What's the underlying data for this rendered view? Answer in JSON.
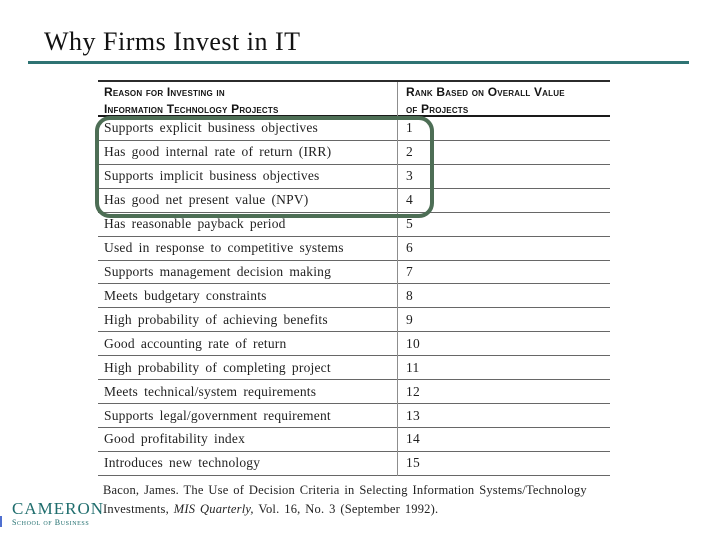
{
  "slide": {
    "title": "Why Firms Invest in IT"
  },
  "table": {
    "header": {
      "col1_line1": "Reason for Investing in",
      "col1_line2": "Information Technology Projects",
      "col2_line1": "Rank Based on Overall Value",
      "col2_line2": "of Projects"
    },
    "rows": [
      {
        "reason": "Supports explicit business objectives",
        "rank": "1",
        "highlighted": true
      },
      {
        "reason": "Has good internal rate of return (IRR)",
        "rank": "2",
        "highlighted": true
      },
      {
        "reason": "Supports implicit business objectives",
        "rank": "3",
        "highlighted": true
      },
      {
        "reason": "Has good net present value (NPV)",
        "rank": "4",
        "highlighted": true
      },
      {
        "reason": "Has reasonable payback period",
        "rank": "5",
        "highlighted": false
      },
      {
        "reason": "Used in response to competitive systems",
        "rank": "6",
        "highlighted": false
      },
      {
        "reason": "Supports management decision making",
        "rank": "7",
        "highlighted": false
      },
      {
        "reason": "Meets budgetary constraints",
        "rank": "8",
        "highlighted": false
      },
      {
        "reason": "High probability of achieving benefits",
        "rank": "9",
        "highlighted": false
      },
      {
        "reason": "Good accounting rate of return",
        "rank": "10",
        "highlighted": false
      },
      {
        "reason": "High probability of completing project",
        "rank": "11",
        "highlighted": false
      },
      {
        "reason": "Meets technical/system requirements",
        "rank": "12",
        "highlighted": false
      },
      {
        "reason": "Supports legal/government requirement",
        "rank": "13",
        "highlighted": false
      },
      {
        "reason": "Good profitability index",
        "rank": "14",
        "highlighted": false
      },
      {
        "reason": "Introduces new technology",
        "rank": "15",
        "highlighted": false
      }
    ]
  },
  "highlight": {
    "rows_covered": "ranks 1-4",
    "border_color": "#4d6e55"
  },
  "citation": {
    "line1": "Bacon, James.  The Use of Decision Criteria in Selecting Information Systems/Technology",
    "line2_pre": "Investments,  ",
    "journal": "MIS Quarterly,",
    "line2_post": " Vol. 16, No. 3 (September 1992)."
  },
  "logo": {
    "name": "Cameron",
    "subtitle": "School of Business"
  },
  "colors": {
    "title_rule_teal": "#2e7373",
    "highlight_green": "#4d6e55",
    "logo_teal": "#1f6d6d"
  }
}
